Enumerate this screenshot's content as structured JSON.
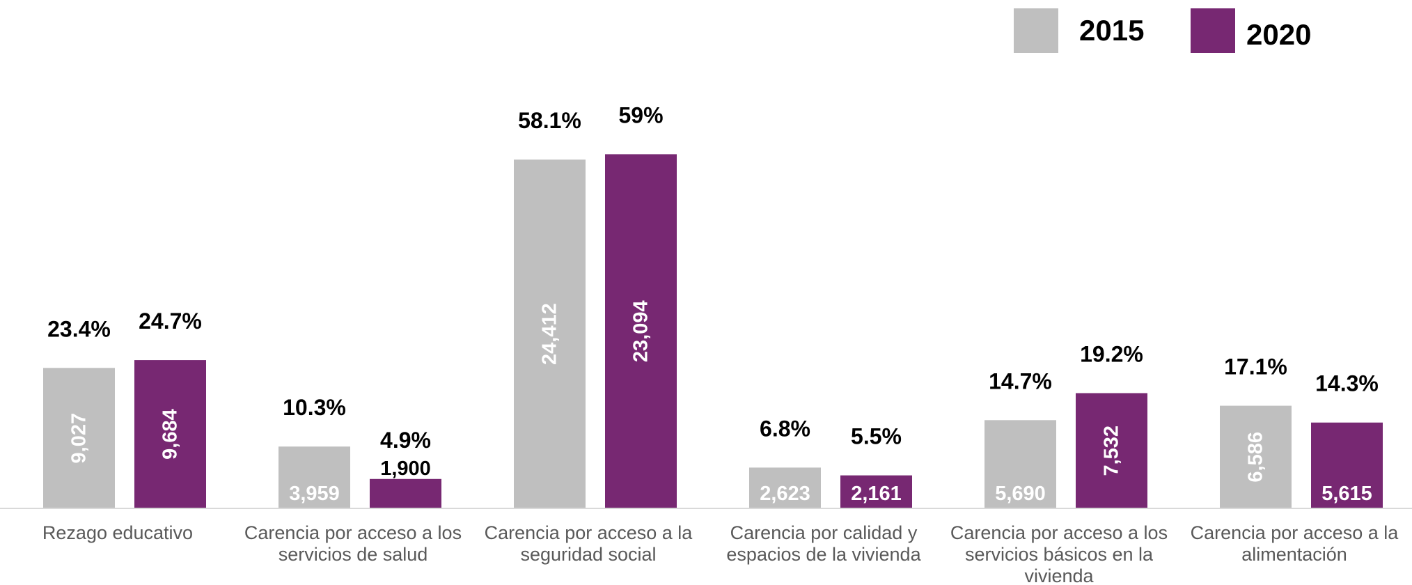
{
  "chart_data": {
    "type": "bar",
    "categories": [
      [
        "Rezago educativo"
      ],
      [
        "Carencia por acceso a los",
        "servicios de salud"
      ],
      [
        "Carencia por acceso a la",
        "seguridad social"
      ],
      [
        "Carencia por calidad y",
        "espacios de la vivienda"
      ],
      [
        "Carencia por acceso a los",
        "servicios básicos en la",
        "vivienda"
      ],
      [
        "Carencia por acceso a la",
        "alimentación"
      ]
    ],
    "series": [
      {
        "name": "2015",
        "color": "#bfbfbf",
        "percent": [
          23.4,
          10.3,
          58.1,
          6.8,
          14.7,
          17.1
        ],
        "percent_labels": [
          "23.4%",
          "10.3%",
          "58.1%",
          "6.8%",
          "14.7%",
          "17.1%"
        ],
        "counts": [
          "9,027",
          "3,959",
          "24,412",
          "2,623",
          "5,690",
          "6,586"
        ]
      },
      {
        "name": "2020",
        "color": "#772872",
        "percent": [
          24.7,
          4.9,
          59,
          5.5,
          19.2,
          14.3
        ],
        "percent_labels": [
          "24.7%",
          "4.9%",
          "59%",
          "5.5%",
          "19.2%",
          "14.3%"
        ],
        "counts": [
          "9,684",
          "1,900",
          "23,094",
          "2,161",
          "7,532",
          "5,615"
        ]
      }
    ],
    "ylim": [
      0,
      60
    ],
    "grid": false,
    "legend_position": "top-right",
    "title": "",
    "xlabel": "",
    "ylabel": ""
  }
}
